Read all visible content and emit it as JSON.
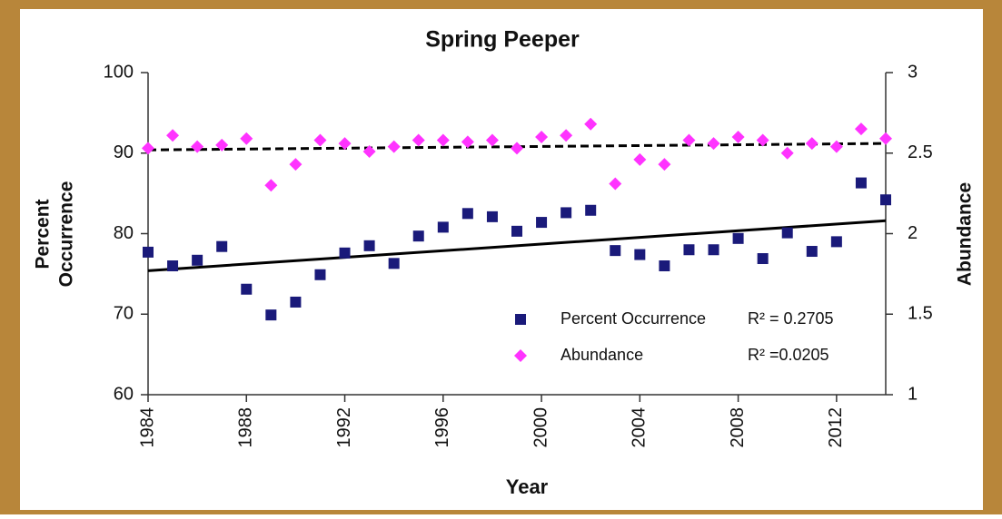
{
  "chart_data": {
    "type": "scatter",
    "title": "Spring Peeper",
    "x_label": "Year",
    "y_label": [
      "Percent",
      "Occurrence"
    ],
    "y2_label": "Abundance",
    "x": [
      1984,
      1985,
      1986,
      1987,
      1988,
      1989,
      1990,
      1991,
      1992,
      1993,
      1994,
      1995,
      1996,
      1997,
      1998,
      1999,
      2000,
      2001,
      2002,
      2003,
      2004,
      2005,
      2006,
      2007,
      2008,
      2009,
      2010,
      2011,
      2012,
      2013,
      2014
    ],
    "xlim": [
      1984,
      2014
    ],
    "xticks": [
      1984,
      1988,
      1992,
      1996,
      2000,
      2004,
      2008,
      2012
    ],
    "ylim": [
      60,
      100
    ],
    "yticks": [
      60,
      70,
      80,
      90,
      100
    ],
    "y2lim": [
      1,
      3
    ],
    "y2ticks": [
      1,
      1.5,
      2,
      2.5,
      3
    ],
    "series": [
      {
        "name": "Percent Occurrence",
        "color": "#1a1a7a",
        "marker": "square",
        "axis": "y",
        "r2_label": "R² = 0.2705",
        "values": [
          77.7,
          76.0,
          76.7,
          78.4,
          73.1,
          69.9,
          71.5,
          74.9,
          77.6,
          78.5,
          76.3,
          79.7,
          80.8,
          82.5,
          82.1,
          80.3,
          81.4,
          82.6,
          82.9,
          77.9,
          77.4,
          76.0,
          78.0,
          78.0,
          79.4,
          76.9,
          80.1,
          77.8,
          79.0,
          86.3,
          84.2
        ],
        "trend": [
          75.4,
          81.6
        ],
        "trend_style": "solid"
      },
      {
        "name": "Abundance",
        "color": "#ff33ff",
        "marker": "diamond",
        "axis": "y2",
        "r2_label": "R² =0.0205",
        "values": [
          2.53,
          2.61,
          2.54,
          2.55,
          2.59,
          2.3,
          2.43,
          2.58,
          2.56,
          2.51,
          2.54,
          2.58,
          2.58,
          2.57,
          2.58,
          2.53,
          2.6,
          2.61,
          2.68,
          2.31,
          2.46,
          2.43,
          2.58,
          2.56,
          2.6,
          2.58,
          2.5,
          2.56,
          2.54,
          2.65,
          2.59
        ],
        "trend": [
          2.52,
          2.56
        ],
        "trend_style": "dashed"
      }
    ]
  }
}
